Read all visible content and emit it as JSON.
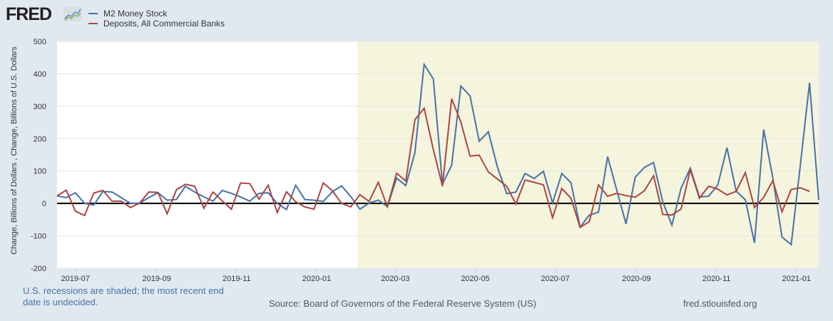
{
  "header": {
    "logo_text": "FRED",
    "logo_icon": "trend-chart-icon"
  },
  "footer": {
    "recession_note": "U.S. recessions are shaded; the most recent end date is undecided.",
    "source": "Source: Board of Governors of the Federal Reserve System (US)",
    "site": "fred.stlouisfed.org"
  },
  "colors": {
    "background": "#e1e9f0",
    "plot_background": "#ffffff",
    "recession_shade": "#f5f4dc",
    "zero_line": "#000000",
    "gridline": "#e6e6e6"
  },
  "chart_data": {
    "type": "line",
    "title": "",
    "xlabel": "",
    "ylabel": "Change, Billions of Dollars , Change, Billions of U.S. Dollars",
    "ylim": [
      -200,
      500
    ],
    "yticks": [
      -200,
      -100,
      0,
      100,
      200,
      300,
      400,
      500
    ],
    "xlim": [
      "2019-06-17",
      "2021-01-18"
    ],
    "xticks": [
      "2019-07",
      "2019-09",
      "2019-11",
      "2020-01",
      "2020-03",
      "2020-05",
      "2020-07",
      "2020-09",
      "2020-11",
      "2021-01"
    ],
    "grid": true,
    "legend_position": "top-left",
    "frequency": "weekly",
    "start_date": "2019-06-17",
    "recession": {
      "start": "2020-02-01",
      "end": "2021-01-18",
      "label": "shaded"
    },
    "series": [
      {
        "name": "M2 Money Stock",
        "color": "#4572a7",
        "values": [
          23,
          18,
          33,
          0,
          -5,
          37,
          35,
          18,
          0,
          1,
          18,
          33,
          10,
          12,
          53,
          35,
          20,
          7,
          40,
          31,
          20,
          7,
          31,
          33,
          0,
          -19,
          56,
          12,
          10,
          6,
          36,
          54,
          21,
          -18,
          1,
          10,
          -10,
          78,
          55,
          157,
          429,
          384,
          59,
          118,
          362,
          332,
          192,
          221,
          111,
          30,
          35,
          92,
          77,
          99,
          1,
          92,
          64,
          -73,
          -36,
          -27,
          144,
          40,
          -63,
          81,
          111,
          126,
          5,
          -67,
          47,
          109,
          20,
          22,
          57,
          172,
          38,
          11,
          -122,
          228,
          78,
          -104,
          -127,
          120,
          372,
          10
        ]
      },
      {
        "name": "Deposits, All Commercial Banks",
        "color": "#aa4643",
        "values": [
          23,
          41,
          -24,
          -37,
          32,
          40,
          7,
          7,
          -13,
          1,
          35,
          34,
          -32,
          42,
          59,
          53,
          -15,
          35,
          8,
          -18,
          63,
          61,
          13,
          56,
          -28,
          36,
          5,
          -11,
          -18,
          63,
          39,
          0,
          -11,
          27,
          6,
          65,
          -10,
          93,
          69,
          258,
          294,
          166,
          53,
          323,
          251,
          146,
          149,
          97,
          75,
          53,
          -2,
          72,
          65,
          57,
          -44,
          46,
          16,
          -74,
          -56,
          57,
          22,
          31,
          24,
          19,
          39,
          85,
          -34,
          -36,
          -17,
          104,
          16,
          53,
          44,
          26,
          37,
          95,
          -13,
          19,
          70,
          -26,
          43,
          48,
          37
        ]
      }
    ]
  }
}
